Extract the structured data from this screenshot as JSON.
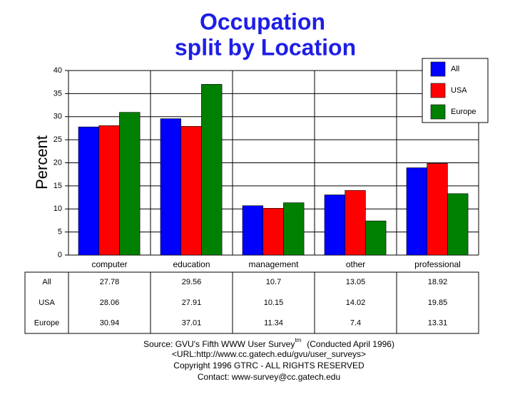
{
  "chart_data": {
    "type": "bar",
    "title_lines": [
      "Occupation",
      "split by Location"
    ],
    "y_label": "Percent",
    "categories": [
      "computer",
      "education",
      "management",
      "other",
      "professional"
    ],
    "series": [
      {
        "name": "All",
        "color": "#0000ff",
        "values": [
          27.78,
          29.56,
          10.7,
          13.05,
          18.92
        ]
      },
      {
        "name": "USA",
        "color": "#ff0000",
        "values": [
          28.06,
          27.91,
          10.15,
          14.02,
          19.85
        ]
      },
      {
        "name": "Europe",
        "color": "#008000",
        "values": [
          30.94,
          37.01,
          11.34,
          7.4,
          13.31
        ]
      }
    ],
    "ylim": [
      0,
      40
    ],
    "yticks": [
      0,
      5,
      10,
      15,
      20,
      25,
      30,
      35,
      40
    ],
    "grid": true,
    "legend": "top-right"
  },
  "footer": {
    "source": "Source: GVU's Fifth WWW User Survey",
    "source_sup": "tm",
    "source_note": "(Conducted April 1996)",
    "url": "<URL:http://www.cc.gatech.edu/gvu/user_surveys>",
    "copyright": "Copyright 1996 GTRC -  ALL RIGHTS RESERVED",
    "contact": "Contact: www-survey@cc.gatech.edu"
  }
}
